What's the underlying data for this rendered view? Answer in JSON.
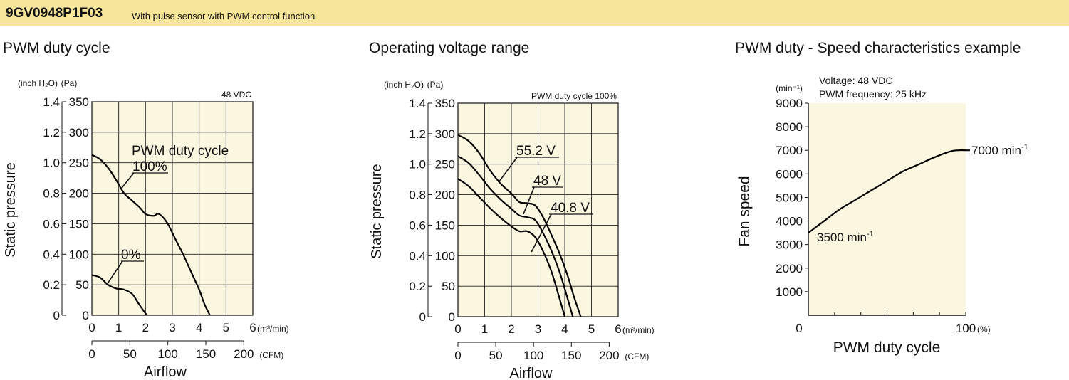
{
  "header": {
    "model": "9GV0948P1F03",
    "description": "With pulse sensor with PWM control function"
  },
  "colors": {
    "banner": "#f7e69a",
    "plot_bg": "#fbf6e0",
    "grid": "#222222",
    "curve": "#000000"
  },
  "chart_data": [
    {
      "type": "line",
      "title": "PWM duty cycle",
      "ylabel": "Static pressure",
      "xlabel": "Airflow",
      "y_unit": "(Pa)",
      "y2_unit": "(inch H₂O)",
      "x_unit": "(m³/min)",
      "x2_unit": "(CFM)",
      "condition": "48 VDC",
      "x_ticks": [
        "0",
        "1",
        "2",
        "3",
        "4",
        "5",
        "6"
      ],
      "x2_ticks": [
        "0",
        "50",
        "100",
        "150",
        "200"
      ],
      "y_ticks": [
        "0",
        "50",
        "100",
        "150",
        "200",
        "250",
        "300",
        "350"
      ],
      "y2_ticks": [
        "0",
        "0.2",
        "0.4",
        "0.6",
        "0.8",
        "1.0",
        "1.2",
        "1.4"
      ],
      "xlim": [
        0,
        6
      ],
      "ylim": [
        0,
        350
      ],
      "grid": true,
      "legend_title": "PWM duty cycle",
      "series": [
        {
          "name": "100%",
          "x": [
            0,
            0.3,
            0.6,
            0.9,
            1.2,
            1.5,
            1.8,
            2.0,
            2.3,
            2.5,
            2.8,
            3.1,
            3.4,
            3.7,
            4.0,
            4.2,
            4.4
          ],
          "y": [
            263,
            256,
            242,
            222,
            200,
            188,
            176,
            166,
            163,
            166,
            152,
            126,
            100,
            71,
            42,
            18,
            0
          ]
        },
        {
          "name": "0%",
          "x": [
            0,
            0.3,
            0.6,
            0.9,
            1.2,
            1.5,
            1.7,
            1.9,
            2.05
          ],
          "y": [
            66,
            62,
            50,
            44,
            42,
            35,
            22,
            9,
            0
          ]
        }
      ]
    },
    {
      "type": "line",
      "title": "Operating voltage range",
      "ylabel": "Static pressure",
      "xlabel": "Airflow",
      "y_unit": "(Pa)",
      "y2_unit": "(inch H₂O)",
      "x_unit": "(m³/min)",
      "x2_unit": "(CFM)",
      "condition": "PWM duty cycle 100%",
      "x_ticks": [
        "0",
        "1",
        "2",
        "3",
        "4",
        "5",
        "6"
      ],
      "x2_ticks": [
        "0",
        "50",
        "100",
        "150",
        "200"
      ],
      "y_ticks": [
        "0",
        "50",
        "100",
        "150",
        "200",
        "250",
        "300",
        "350"
      ],
      "y2_ticks": [
        "0",
        "0.2",
        "0.4",
        "0.6",
        "0.8",
        "1.0",
        "1.2",
        "1.4"
      ],
      "xlim": [
        0,
        6
      ],
      "ylim": [
        0,
        350
      ],
      "grid": true,
      "series": [
        {
          "name": "55.2 V",
          "x": [
            0,
            0.4,
            0.8,
            1.2,
            1.6,
            2.0,
            2.3,
            2.6,
            2.9,
            3.2,
            3.5,
            3.8,
            4.1,
            4.35,
            4.6
          ],
          "y": [
            298,
            288,
            268,
            240,
            218,
            202,
            188,
            186,
            182,
            162,
            134,
            104,
            68,
            32,
            0
          ]
        },
        {
          "name": "48 V",
          "x": [
            0,
            0.4,
            0.8,
            1.2,
            1.6,
            2.0,
            2.3,
            2.6,
            2.9,
            3.2,
            3.5,
            3.8,
            4.05,
            4.3
          ],
          "y": [
            263,
            252,
            232,
            210,
            192,
            177,
            166,
            163,
            158,
            136,
            108,
            74,
            38,
            0
          ]
        },
        {
          "name": "40.8 V",
          "x": [
            0,
            0.4,
            0.8,
            1.2,
            1.6,
            2.0,
            2.3,
            2.6,
            2.9,
            3.2,
            3.5,
            3.75,
            4.0
          ],
          "y": [
            226,
            214,
            196,
            178,
            162,
            148,
            140,
            140,
            130,
            106,
            74,
            38,
            0
          ]
        }
      ]
    },
    {
      "type": "line",
      "title": "PWM duty - Speed characteristics example",
      "ylabel": "Fan speed",
      "xlabel": "PWM duty cycle",
      "y_unit": "(min⁻¹)",
      "x_unit": "(%)",
      "condition_lines": [
        "Voltage: 48 VDC",
        "PWM frequency: 25 kHz"
      ],
      "x_ticks": [
        "0",
        "100"
      ],
      "y_ticks": [
        "1000",
        "2000",
        "3000",
        "4000",
        "5000",
        "6000",
        "7000",
        "8000",
        "9000"
      ],
      "xlim": [
        0,
        100
      ],
      "ylim": [
        0,
        9000
      ],
      "grid": false,
      "series": [
        {
          "name": "speed",
          "x": [
            0,
            10,
            20,
            30,
            40,
            50,
            60,
            70,
            80,
            90,
            95,
            100
          ],
          "y": [
            3500,
            4000,
            4500,
            4900,
            5300,
            5700,
            6100,
            6400,
            6700,
            6950,
            7000,
            7000
          ]
        }
      ],
      "annotations": [
        {
          "text": "7000 min",
          "sup": "-1"
        },
        {
          "text": "3500 min",
          "sup": "-1"
        }
      ]
    }
  ]
}
